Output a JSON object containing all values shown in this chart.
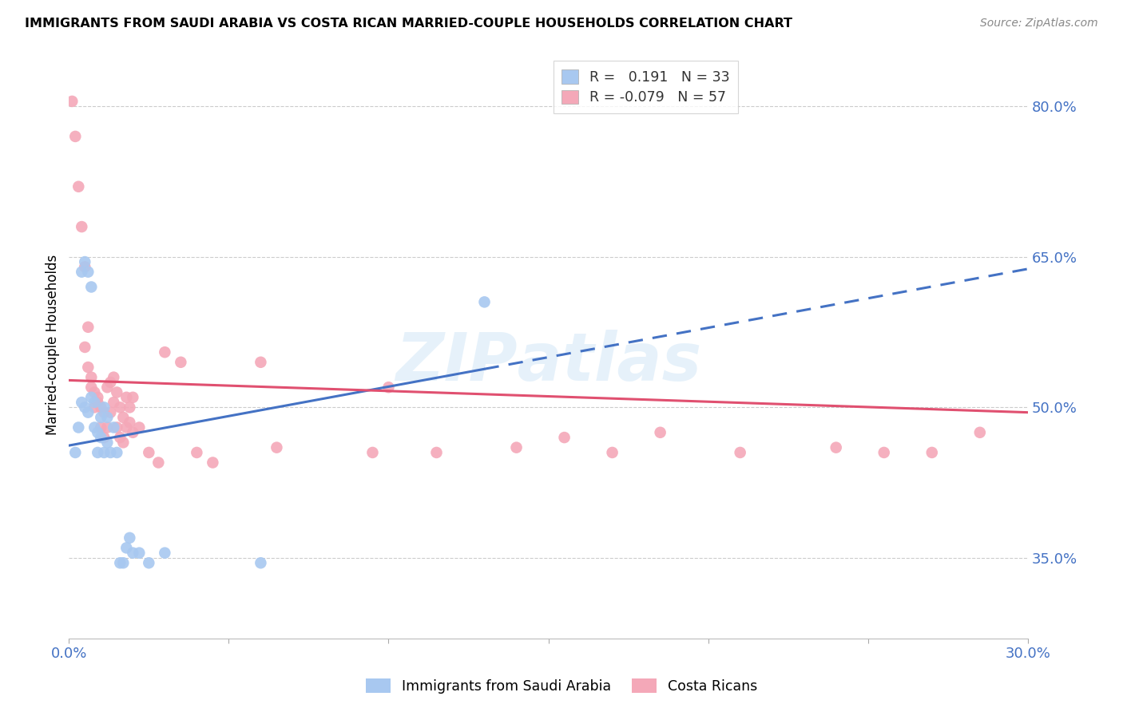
{
  "title": "IMMIGRANTS FROM SAUDI ARABIA VS COSTA RICAN MARRIED-COUPLE HOUSEHOLDS CORRELATION CHART",
  "source": "Source: ZipAtlas.com",
  "ylabel": "Married-couple Households",
  "ytick_labels": [
    "80.0%",
    "65.0%",
    "50.0%",
    "35.0%"
  ],
  "ytick_values": [
    0.8,
    0.65,
    0.5,
    0.35
  ],
  "xlim": [
    0.0,
    0.3
  ],
  "ylim": [
    0.27,
    0.855
  ],
  "blue_color": "#A8C8F0",
  "pink_color": "#F4A8B8",
  "blue_line_color": "#4472C4",
  "pink_line_color": "#E05070",
  "grid_color": "#CCCCCC",
  "right_label_color": "#4472C4",
  "blue_line_solid_end": 0.13,
  "blue_line_x0": 0.0,
  "blue_line_y0": 0.462,
  "blue_line_x1": 0.3,
  "blue_line_y1": 0.638,
  "pink_line_x0": 0.0,
  "pink_line_y0": 0.527,
  "pink_line_x1": 0.3,
  "pink_line_y1": 0.495,
  "blue_scatter_x": [
    0.002,
    0.003,
    0.004,
    0.004,
    0.005,
    0.005,
    0.006,
    0.006,
    0.007,
    0.007,
    0.008,
    0.008,
    0.009,
    0.009,
    0.01,
    0.01,
    0.011,
    0.011,
    0.012,
    0.012,
    0.013,
    0.014,
    0.015,
    0.016,
    0.017,
    0.018,
    0.019,
    0.02,
    0.022,
    0.025,
    0.03,
    0.06,
    0.13
  ],
  "blue_scatter_y": [
    0.455,
    0.48,
    0.505,
    0.635,
    0.645,
    0.5,
    0.495,
    0.635,
    0.62,
    0.51,
    0.505,
    0.48,
    0.475,
    0.455,
    0.47,
    0.49,
    0.5,
    0.455,
    0.49,
    0.465,
    0.455,
    0.48,
    0.455,
    0.345,
    0.345,
    0.36,
    0.37,
    0.355,
    0.355,
    0.345,
    0.355,
    0.345,
    0.605
  ],
  "pink_scatter_x": [
    0.001,
    0.002,
    0.003,
    0.004,
    0.005,
    0.005,
    0.006,
    0.006,
    0.007,
    0.007,
    0.008,
    0.008,
    0.009,
    0.009,
    0.01,
    0.01,
    0.011,
    0.011,
    0.012,
    0.012,
    0.013,
    0.013,
    0.014,
    0.014,
    0.015,
    0.015,
    0.016,
    0.016,
    0.017,
    0.017,
    0.018,
    0.018,
    0.019,
    0.019,
    0.02,
    0.02,
    0.022,
    0.025,
    0.028,
    0.03,
    0.035,
    0.04,
    0.045,
    0.06,
    0.065,
    0.095,
    0.1,
    0.115,
    0.14,
    0.155,
    0.17,
    0.185,
    0.21,
    0.24,
    0.255,
    0.27,
    0.285
  ],
  "pink_scatter_y": [
    0.805,
    0.77,
    0.72,
    0.68,
    0.64,
    0.56,
    0.58,
    0.54,
    0.53,
    0.52,
    0.515,
    0.5,
    0.51,
    0.505,
    0.5,
    0.48,
    0.495,
    0.47,
    0.48,
    0.52,
    0.495,
    0.525,
    0.53,
    0.505,
    0.515,
    0.48,
    0.5,
    0.47,
    0.49,
    0.465,
    0.48,
    0.51,
    0.485,
    0.5,
    0.475,
    0.51,
    0.48,
    0.455,
    0.445,
    0.555,
    0.545,
    0.455,
    0.445,
    0.545,
    0.46,
    0.455,
    0.52,
    0.455,
    0.46,
    0.47,
    0.455,
    0.475,
    0.455,
    0.46,
    0.455,
    0.455,
    0.475
  ]
}
